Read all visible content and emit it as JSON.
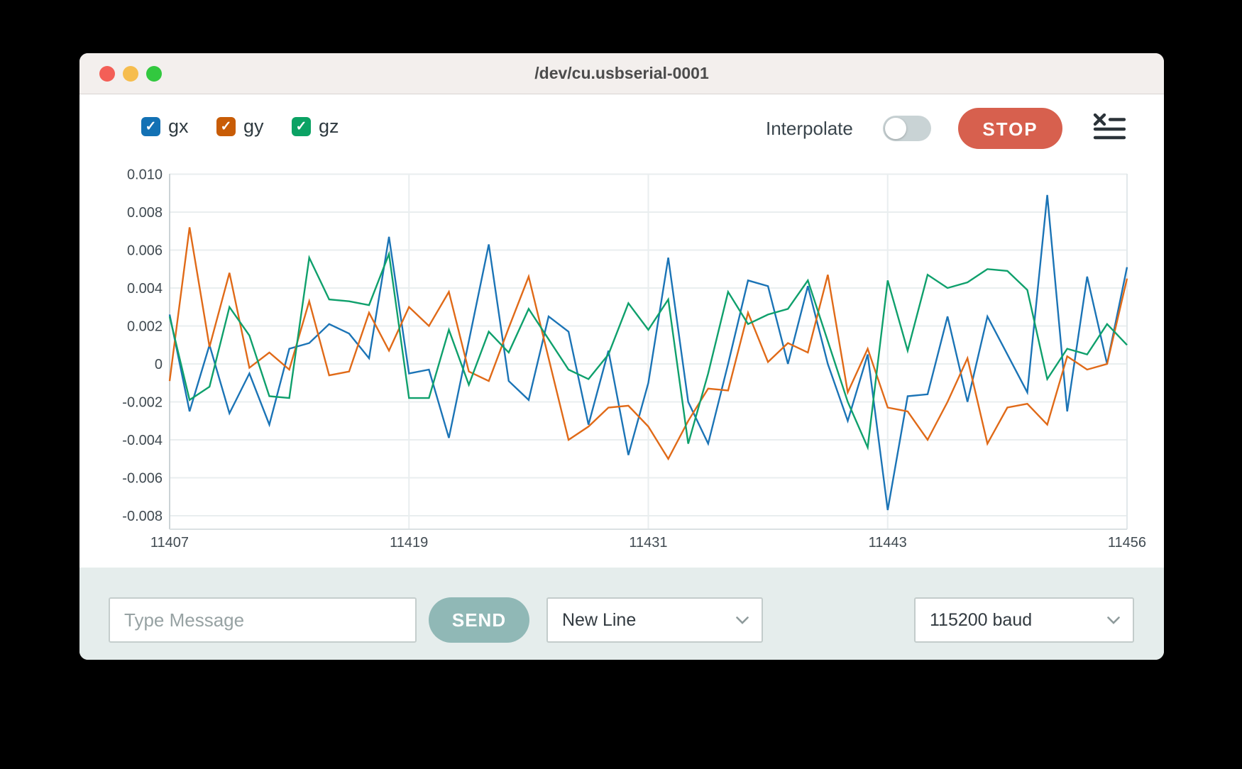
{
  "window": {
    "title": "/dev/cu.usbserial-0001"
  },
  "legend": {
    "items": [
      {
        "label": "gx",
        "checked": true,
        "color": "#1371b4",
        "check_glyph": "✓"
      },
      {
        "label": "gy",
        "checked": true,
        "color": "#c85c06",
        "check_glyph": "✓"
      },
      {
        "label": "gz",
        "checked": true,
        "color": "#0ba264",
        "check_glyph": "✓"
      }
    ]
  },
  "controls": {
    "interpolate_label": "Interpolate",
    "interpolate_on": false,
    "stop_label": "STOP"
  },
  "chart_data": {
    "type": "line",
    "title": "",
    "xlabel": "",
    "ylabel": "",
    "grid": true,
    "legend_position": "top-left-external",
    "x_start": 11407,
    "x_step": 1,
    "x_tick_values": [
      11407,
      11419,
      11431,
      11443,
      11456
    ],
    "x_tick_labels": [
      "11407",
      "11419",
      "11431",
      "11443",
      "11456"
    ],
    "y_tick_labels": [
      "0.010",
      "0.008",
      "0.006",
      "0.004",
      "0.002",
      "0",
      "-0.002",
      "-0.004",
      "-0.006",
      "-0.008"
    ],
    "ylim": [
      -0.0087,
      0.0101
    ],
    "colors": {
      "grid": "#e9eeef",
      "axis": "#ccd3d6",
      "tick_text": "#404a51"
    },
    "series": [
      {
        "name": "gx",
        "color": "#1b74b6",
        "values": [
          0.0026,
          -0.0025,
          0.001,
          -0.0026,
          -0.0005,
          -0.0032,
          0.0008,
          0.0011,
          0.0021,
          0.0016,
          0.0003,
          0.0067,
          -0.0005,
          -0.0003,
          -0.0039,
          0.0012,
          0.0063,
          -0.0009,
          -0.0019,
          0.0025,
          0.0017,
          -0.0032,
          0.0007,
          -0.0048,
          -0.001,
          0.0056,
          -0.002,
          -0.0042,
          0,
          0.0044,
          0.0041,
          0,
          0.0041,
          0,
          -0.003,
          0.0005,
          -0.0077,
          -0.0017,
          -0.0016,
          0.0025,
          -0.002,
          0.0025,
          0.0005,
          -0.0015,
          0.0089,
          -0.0025,
          0.0046,
          0,
          0.0051
        ]
      },
      {
        "name": "gy",
        "color": "#e06a18",
        "values": [
          -0.0009,
          0.0072,
          0.0009,
          0.0048,
          -0.0002,
          0.0006,
          -0.0003,
          0.0033,
          -0.0006,
          -0.0004,
          0.0027,
          0.0007,
          0.003,
          0.002,
          0.0038,
          -0.0004,
          -0.0009,
          0.0019,
          0.0046,
          0.0003,
          -0.004,
          -0.0033,
          -0.0023,
          -0.0022,
          -0.0033,
          -0.005,
          -0.003,
          -0.0013,
          -0.0014,
          0.0027,
          0.0001,
          0.0011,
          0.0006,
          0.0047,
          -0.0015,
          0.0008,
          -0.0023,
          -0.0025,
          -0.004,
          -0.002,
          0.0003,
          -0.0042,
          -0.0023,
          -0.0021,
          -0.0032,
          0.0004,
          -0.0003,
          0,
          0.0045
        ]
      },
      {
        "name": "gz",
        "color": "#0fa06c",
        "values": [
          0.0025,
          -0.0019,
          -0.0012,
          0.003,
          0.0015,
          -0.0017,
          -0.0018,
          0.0056,
          0.0034,
          0.0033,
          0.0031,
          0.0058,
          -0.0018,
          -0.0018,
          0.0018,
          -0.0011,
          0.0017,
          0.0006,
          0.0029,
          0.0013,
          -0.0003,
          -0.0008,
          0.0005,
          0.0032,
          0.0018,
          0.0034,
          -0.0042,
          -0.0005,
          0.0038,
          0.0021,
          0.0026,
          0.0029,
          0.0044,
          0.0012,
          -0.002,
          -0.0044,
          0.0044,
          0.0007,
          0.0047,
          0.004,
          0.0043,
          0.005,
          0.0049,
          0.0039,
          -0.0008,
          0.0008,
          0.0005,
          0.0021,
          0.001
        ]
      }
    ]
  },
  "footer": {
    "message_placeholder": "Type Message",
    "send_label": "SEND",
    "line_ending_selected": "New Line",
    "baud_selected": "115200 baud"
  }
}
